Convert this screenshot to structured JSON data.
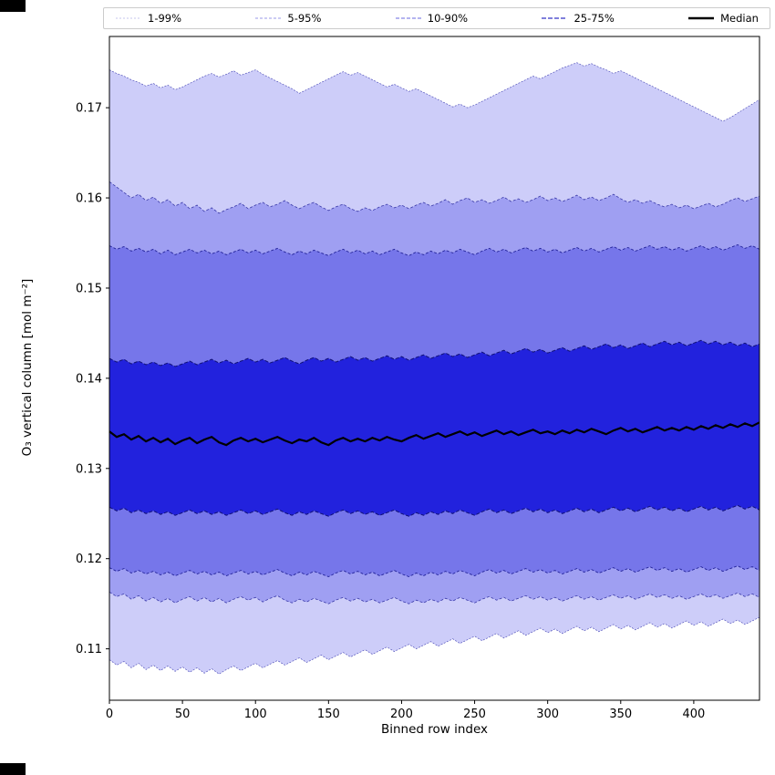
{
  "chart_data": {
    "type": "area",
    "title": "",
    "xlabel": "Binned row index",
    "ylabel": "O₃ vertical column [mol m⁻²]",
    "xlim": [
      0,
      445
    ],
    "ylim": [
      0.1043,
      0.1779
    ],
    "grid": false,
    "legend_position": "top",
    "x": {
      "start": 0,
      "step": 5,
      "count": 90
    },
    "xticks": [
      {
        "v": 0,
        "label": "0"
      },
      {
        "v": 50,
        "label": "50"
      },
      {
        "v": 100,
        "label": "100"
      },
      {
        "v": 150,
        "label": "150"
      },
      {
        "v": 200,
        "label": "200"
      },
      {
        "v": 250,
        "label": "250"
      },
      {
        "v": 300,
        "label": "300"
      },
      {
        "v": 350,
        "label": "350"
      },
      {
        "v": 400,
        "label": "400"
      }
    ],
    "yticks": [
      {
        "v": 0.11,
        "label": "0.11"
      },
      {
        "v": 0.12,
        "label": "0.12"
      },
      {
        "v": 0.13,
        "label": "0.13"
      },
      {
        "v": 0.14,
        "label": "0.14"
      },
      {
        "v": 0.15,
        "label": "0.15"
      },
      {
        "v": 0.16,
        "label": "0.16"
      },
      {
        "v": 0.17,
        "label": "0.17"
      }
    ],
    "legend": [
      {
        "label": "1-99%",
        "color": "#c4c4ee",
        "width": 1,
        "dash": "2,2"
      },
      {
        "label": "5-95%",
        "color": "#9a9ae8",
        "width": 1,
        "dash": "3,2"
      },
      {
        "label": "10-90%",
        "color": "#6a6ae2",
        "width": 1.1,
        "dash": "4,2"
      },
      {
        "label": "25-75%",
        "color": "#3434c8",
        "width": 1.3,
        "dash": "5,2"
      },
      {
        "label": "Median",
        "color": "#000000",
        "width": 2.5,
        "dash": ""
      }
    ],
    "bands": [
      {
        "name": "band-1-99",
        "low": "p1",
        "high": "p99",
        "fill": "#cdcdf9"
      },
      {
        "name": "band-5-95",
        "low": "p5",
        "high": "p95",
        "fill": "#9f9ff2"
      },
      {
        "name": "band-10-90",
        "low": "p10",
        "high": "p90",
        "fill": "#7676ea"
      },
      {
        "name": "band-25-75",
        "low": "p25",
        "high": "p75",
        "fill": "#2222dd"
      }
    ],
    "edges": [
      {
        "series": "p1",
        "color": "#5555bb",
        "width": 0.7,
        "dash": "2,1.5"
      },
      {
        "series": "p99",
        "color": "#5555bb",
        "width": 0.7,
        "dash": "2,1.5"
      },
      {
        "series": "p5",
        "color": "#3a3aa8",
        "width": 0.8,
        "dash": "3,2"
      },
      {
        "series": "p95",
        "color": "#3a3aa8",
        "width": 0.8,
        "dash": "3,2"
      },
      {
        "series": "p10",
        "color": "#232399",
        "width": 0.9,
        "dash": "3,2"
      },
      {
        "series": "p90",
        "color": "#232399",
        "width": 0.9,
        "dash": "3,2"
      },
      {
        "series": "p25",
        "color": "#111177",
        "width": 1.0,
        "dash": "4,2"
      },
      {
        "series": "p75",
        "color": "#111177",
        "width": 1.0,
        "dash": "4,2"
      },
      {
        "series": "median",
        "color": "#000000",
        "width": 2.2,
        "dash": ""
      }
    ],
    "series": [
      {
        "name": "p1",
        "values": [
          0.1088,
          0.1082,
          0.1086,
          0.1079,
          0.1084,
          0.1077,
          0.1082,
          0.1076,
          0.1081,
          0.1075,
          0.108,
          0.1074,
          0.1079,
          0.1073,
          0.1078,
          0.1072,
          0.1077,
          0.1081,
          0.1076,
          0.108,
          0.1084,
          0.1079,
          0.1083,
          0.1087,
          0.1082,
          0.1086,
          0.109,
          0.1085,
          0.1089,
          0.1093,
          0.1088,
          0.1092,
          0.1096,
          0.1091,
          0.1095,
          0.1099,
          0.1094,
          0.1098,
          0.1102,
          0.1097,
          0.1101,
          0.1105,
          0.11,
          0.1104,
          0.1108,
          0.1103,
          0.1107,
          0.1111,
          0.1106,
          0.111,
          0.1114,
          0.1109,
          0.1113,
          0.1117,
          0.1112,
          0.1116,
          0.112,
          0.1115,
          0.1119,
          0.1123,
          0.1118,
          0.1122,
          0.1117,
          0.1121,
          0.1125,
          0.112,
          0.1124,
          0.1119,
          0.1123,
          0.1127,
          0.1122,
          0.1126,
          0.1121,
          0.1125,
          0.1129,
          0.1124,
          0.1128,
          0.1123,
          0.1127,
          0.1131,
          0.1126,
          0.113,
          0.1125,
          0.1129,
          0.1133,
          0.1128,
          0.1132,
          0.1127,
          0.1131,
          0.1135
        ]
      },
      {
        "name": "p5",
        "values": [
          0.1163,
          0.1158,
          0.1161,
          0.1155,
          0.1159,
          0.1153,
          0.1157,
          0.1152,
          0.1156,
          0.1151,
          0.1155,
          0.1158,
          0.1153,
          0.1157,
          0.1152,
          0.1156,
          0.1151,
          0.1155,
          0.1158,
          0.1154,
          0.1157,
          0.1152,
          0.1156,
          0.1159,
          0.1154,
          0.1151,
          0.1155,
          0.1152,
          0.1156,
          0.1153,
          0.115,
          0.1154,
          0.1157,
          0.1153,
          0.1156,
          0.1152,
          0.1155,
          0.1151,
          0.1154,
          0.1157,
          0.1153,
          0.115,
          0.1154,
          0.1151,
          0.1155,
          0.1152,
          0.1156,
          0.1153,
          0.1157,
          0.1154,
          0.1151,
          0.1155,
          0.1158,
          0.1154,
          0.1157,
          0.1153,
          0.1156,
          0.1159,
          0.1155,
          0.1158,
          0.1154,
          0.1157,
          0.1153,
          0.1156,
          0.1159,
          0.1155,
          0.1158,
          0.1154,
          0.1157,
          0.116,
          0.1156,
          0.1159,
          0.1155,
          0.1158,
          0.1161,
          0.1157,
          0.116,
          0.1156,
          0.1159,
          0.1155,
          0.1158,
          0.1161,
          0.1157,
          0.116,
          0.1156,
          0.1159,
          0.1162,
          0.1158,
          0.1161,
          0.1157
        ]
      },
      {
        "name": "p10",
        "values": [
          0.119,
          0.1186,
          0.1189,
          0.1184,
          0.1187,
          0.1183,
          0.1186,
          0.1182,
          0.1185,
          0.1181,
          0.1184,
          0.1187,
          0.1183,
          0.1186,
          0.1182,
          0.1185,
          0.1181,
          0.1184,
          0.1187,
          0.1183,
          0.1186,
          0.1182,
          0.1185,
          0.1188,
          0.1184,
          0.1181,
          0.1185,
          0.1182,
          0.1186,
          0.1183,
          0.118,
          0.1184,
          0.1187,
          0.1183,
          0.1186,
          0.1182,
          0.1185,
          0.1181,
          0.1184,
          0.1187,
          0.1183,
          0.118,
          0.1184,
          0.1181,
          0.1185,
          0.1182,
          0.1186,
          0.1183,
          0.1187,
          0.1184,
          0.1181,
          0.1185,
          0.1188,
          0.1184,
          0.1187,
          0.1183,
          0.1186,
          0.1189,
          0.1185,
          0.1188,
          0.1184,
          0.1187,
          0.1183,
          0.1186,
          0.1189,
          0.1185,
          0.1188,
          0.1184,
          0.1187,
          0.119,
          0.1186,
          0.1189,
          0.1185,
          0.1188,
          0.1191,
          0.1187,
          0.119,
          0.1186,
          0.1189,
          0.1185,
          0.1188,
          0.1191,
          0.1187,
          0.119,
          0.1186,
          0.1189,
          0.1192,
          0.1188,
          0.1191,
          0.1187
        ]
      },
      {
        "name": "p25",
        "values": [
          0.1257,
          0.1253,
          0.1256,
          0.1251,
          0.1254,
          0.125,
          0.1253,
          0.1249,
          0.1252,
          0.1248,
          0.1251,
          0.1254,
          0.125,
          0.1253,
          0.1249,
          0.1252,
          0.1248,
          0.1251,
          0.1254,
          0.125,
          0.1253,
          0.1249,
          0.1252,
          0.1255,
          0.1251,
          0.1248,
          0.1252,
          0.1249,
          0.1253,
          0.125,
          0.1247,
          0.1251,
          0.1254,
          0.125,
          0.1253,
          0.1249,
          0.1252,
          0.1248,
          0.1251,
          0.1254,
          0.125,
          0.1247,
          0.1251,
          0.1248,
          0.1252,
          0.1249,
          0.1253,
          0.125,
          0.1254,
          0.1251,
          0.1248,
          0.1252,
          0.1255,
          0.1251,
          0.1254,
          0.125,
          0.1253,
          0.1256,
          0.1252,
          0.1255,
          0.1251,
          0.1254,
          0.125,
          0.1253,
          0.1256,
          0.1252,
          0.1255,
          0.1251,
          0.1254,
          0.1257,
          0.1253,
          0.1256,
          0.1252,
          0.1255,
          0.1258,
          0.1254,
          0.1257,
          0.1253,
          0.1256,
          0.1252,
          0.1255,
          0.1258,
          0.1254,
          0.1257,
          0.1253,
          0.1256,
          0.1259,
          0.1255,
          0.1258,
          0.1254
        ]
      },
      {
        "name": "median",
        "values": [
          0.1341,
          0.1335,
          0.1338,
          0.1332,
          0.1336,
          0.133,
          0.1334,
          0.1329,
          0.1333,
          0.1327,
          0.1331,
          0.1334,
          0.1328,
          0.1332,
          0.1335,
          0.1329,
          0.1326,
          0.1331,
          0.1334,
          0.133,
          0.1333,
          0.1329,
          0.1332,
          0.1335,
          0.1331,
          0.1328,
          0.1332,
          0.133,
          0.1334,
          0.1329,
          0.1326,
          0.1331,
          0.1334,
          0.133,
          0.1333,
          0.133,
          0.1334,
          0.1331,
          0.1335,
          0.1332,
          0.133,
          0.1334,
          0.1337,
          0.1333,
          0.1336,
          0.1339,
          0.1335,
          0.1338,
          0.1341,
          0.1337,
          0.134,
          0.1336,
          0.1339,
          0.1342,
          0.1338,
          0.1341,
          0.1337,
          0.134,
          0.1343,
          0.1339,
          0.1341,
          0.1338,
          0.1342,
          0.1339,
          0.1343,
          0.134,
          0.1344,
          0.1341,
          0.1338,
          0.1342,
          0.1345,
          0.1341,
          0.1344,
          0.134,
          0.1343,
          0.1346,
          0.1342,
          0.1345,
          0.1342,
          0.1346,
          0.1343,
          0.1347,
          0.1344,
          0.1348,
          0.1345,
          0.1349,
          0.1346,
          0.135,
          0.1347,
          0.1351
        ]
      },
      {
        "name": "p75",
        "values": [
          0.1422,
          0.1418,
          0.1421,
          0.1416,
          0.1419,
          0.1415,
          0.1418,
          0.1414,
          0.1417,
          0.1413,
          0.1416,
          0.1419,
          0.1415,
          0.1418,
          0.1421,
          0.1417,
          0.142,
          0.1416,
          0.1419,
          0.1422,
          0.1418,
          0.1421,
          0.1417,
          0.142,
          0.1423,
          0.1419,
          0.1416,
          0.142,
          0.1423,
          0.1419,
          0.1422,
          0.1418,
          0.1421,
          0.1424,
          0.142,
          0.1423,
          0.1419,
          0.1422,
          0.1425,
          0.1421,
          0.1424,
          0.142,
          0.1423,
          0.1426,
          0.1422,
          0.1425,
          0.1428,
          0.1424,
          0.1427,
          0.1423,
          0.1426,
          0.1429,
          0.1425,
          0.1428,
          0.1431,
          0.1427,
          0.143,
          0.1433,
          0.1429,
          0.1432,
          0.1428,
          0.1431,
          0.1434,
          0.143,
          0.1433,
          0.1436,
          0.1432,
          0.1435,
          0.1438,
          0.1434,
          0.1437,
          0.1433,
          0.1436,
          0.1439,
          0.1435,
          0.1438,
          0.1441,
          0.1437,
          0.144,
          0.1436,
          0.1439,
          0.1442,
          0.1438,
          0.1441,
          0.1437,
          0.144,
          0.1436,
          0.1439,
          0.1435,
          0.1438
        ]
      },
      {
        "name": "p90",
        "values": [
          0.1547,
          0.1543,
          0.1546,
          0.1541,
          0.1544,
          0.154,
          0.1543,
          0.1538,
          0.1542,
          0.1537,
          0.154,
          0.1543,
          0.1539,
          0.1542,
          0.1538,
          0.1541,
          0.1537,
          0.154,
          0.1543,
          0.1539,
          0.1542,
          0.1538,
          0.1541,
          0.1544,
          0.154,
          0.1537,
          0.1541,
          0.1538,
          0.1542,
          0.1539,
          0.1536,
          0.154,
          0.1543,
          0.1539,
          0.1542,
          0.1538,
          0.1541,
          0.1537,
          0.154,
          0.1543,
          0.1539,
          0.1536,
          0.154,
          0.1537,
          0.1541,
          0.1538,
          0.1542,
          0.1539,
          0.1543,
          0.154,
          0.1537,
          0.1541,
          0.1544,
          0.154,
          0.1543,
          0.1539,
          0.1542,
          0.1545,
          0.1541,
          0.1544,
          0.154,
          0.1543,
          0.1539,
          0.1542,
          0.1545,
          0.1541,
          0.1544,
          0.154,
          0.1543,
          0.1546,
          0.1542,
          0.1545,
          0.1541,
          0.1544,
          0.1547,
          0.1543,
          0.1546,
          0.1542,
          0.1545,
          0.1541,
          0.1544,
          0.1547,
          0.1543,
          0.1546,
          0.1542,
          0.1545,
          0.1548,
          0.1544,
          0.1547,
          0.1543
        ]
      },
      {
        "name": "p95",
        "values": [
          0.1618,
          0.1612,
          0.1606,
          0.16,
          0.1604,
          0.1597,
          0.1601,
          0.1594,
          0.1598,
          0.1591,
          0.1595,
          0.1588,
          0.1592,
          0.1585,
          0.1589,
          0.1583,
          0.1587,
          0.159,
          0.1594,
          0.1588,
          0.1592,
          0.1595,
          0.159,
          0.1593,
          0.1597,
          0.1592,
          0.1588,
          0.1592,
          0.1595,
          0.159,
          0.1586,
          0.159,
          0.1593,
          0.1588,
          0.1585,
          0.1589,
          0.1586,
          0.159,
          0.1593,
          0.1589,
          0.1592,
          0.1588,
          0.1592,
          0.1595,
          0.1591,
          0.1594,
          0.1598,
          0.1593,
          0.1597,
          0.16,
          0.1595,
          0.1598,
          0.1594,
          0.1597,
          0.1601,
          0.1596,
          0.1599,
          0.1595,
          0.1598,
          0.1602,
          0.1597,
          0.16,
          0.1596,
          0.1599,
          0.1603,
          0.1598,
          0.1601,
          0.1597,
          0.16,
          0.1604,
          0.1599,
          0.1595,
          0.1598,
          0.1594,
          0.1597,
          0.1593,
          0.159,
          0.1593,
          0.1589,
          0.1592,
          0.1588,
          0.1591,
          0.1594,
          0.159,
          0.1593,
          0.1597,
          0.16,
          0.1596,
          0.1599,
          0.1602
        ]
      },
      {
        "name": "p99",
        "values": [
          0.1742,
          0.1738,
          0.1735,
          0.1731,
          0.1728,
          0.1724,
          0.1727,
          0.1722,
          0.1725,
          0.172,
          0.1723,
          0.1727,
          0.1731,
          0.1735,
          0.1738,
          0.1734,
          0.1737,
          0.1741,
          0.1736,
          0.1739,
          0.1742,
          0.1737,
          0.1733,
          0.1729,
          0.1725,
          0.1721,
          0.1716,
          0.172,
          0.1724,
          0.1728,
          0.1732,
          0.1736,
          0.174,
          0.1736,
          0.1739,
          0.1735,
          0.1731,
          0.1727,
          0.1723,
          0.1726,
          0.1722,
          0.1718,
          0.1721,
          0.1717,
          0.1713,
          0.1709,
          0.1705,
          0.1701,
          0.1704,
          0.17,
          0.1703,
          0.1707,
          0.1711,
          0.1715,
          0.1719,
          0.1723,
          0.1727,
          0.1731,
          0.1735,
          0.1732,
          0.1736,
          0.174,
          0.1744,
          0.1747,
          0.175,
          0.1746,
          0.1749,
          0.1745,
          0.1742,
          0.1738,
          0.1741,
          0.1737,
          0.1733,
          0.1729,
          0.1725,
          0.1721,
          0.1717,
          0.1713,
          0.1709,
          0.1705,
          0.1701,
          0.1697,
          0.1693,
          0.1689,
          0.1685,
          0.1689,
          0.1694,
          0.1699,
          0.1704,
          0.1709
        ]
      }
    ]
  }
}
